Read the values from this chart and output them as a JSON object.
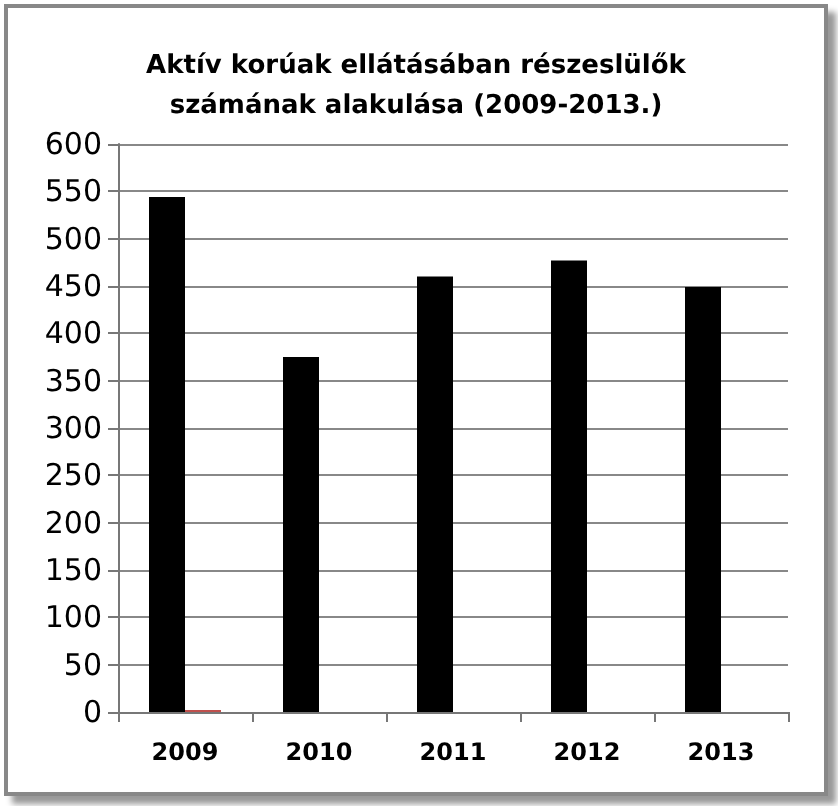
{
  "chart_data": {
    "type": "bar",
    "title": "Aktív korúak ellátásában részeslülők\nszámának alakulása (2009-2013.)",
    "categories": [
      "2009",
      "2010",
      "2011",
      "2012",
      "2013"
    ],
    "series": [
      {
        "color": "#000000",
        "values": [
          544,
          375,
          460,
          477,
          449
        ]
      },
      {
        "color": "#c0504d",
        "values": [
          2,
          null,
          null,
          null,
          null
        ]
      }
    ],
    "ylim": [
      0,
      600
    ],
    "yticks": [
      0,
      50,
      100,
      150,
      200,
      250,
      300,
      350,
      400,
      450,
      500,
      550,
      600
    ],
    "grid": "y"
  }
}
